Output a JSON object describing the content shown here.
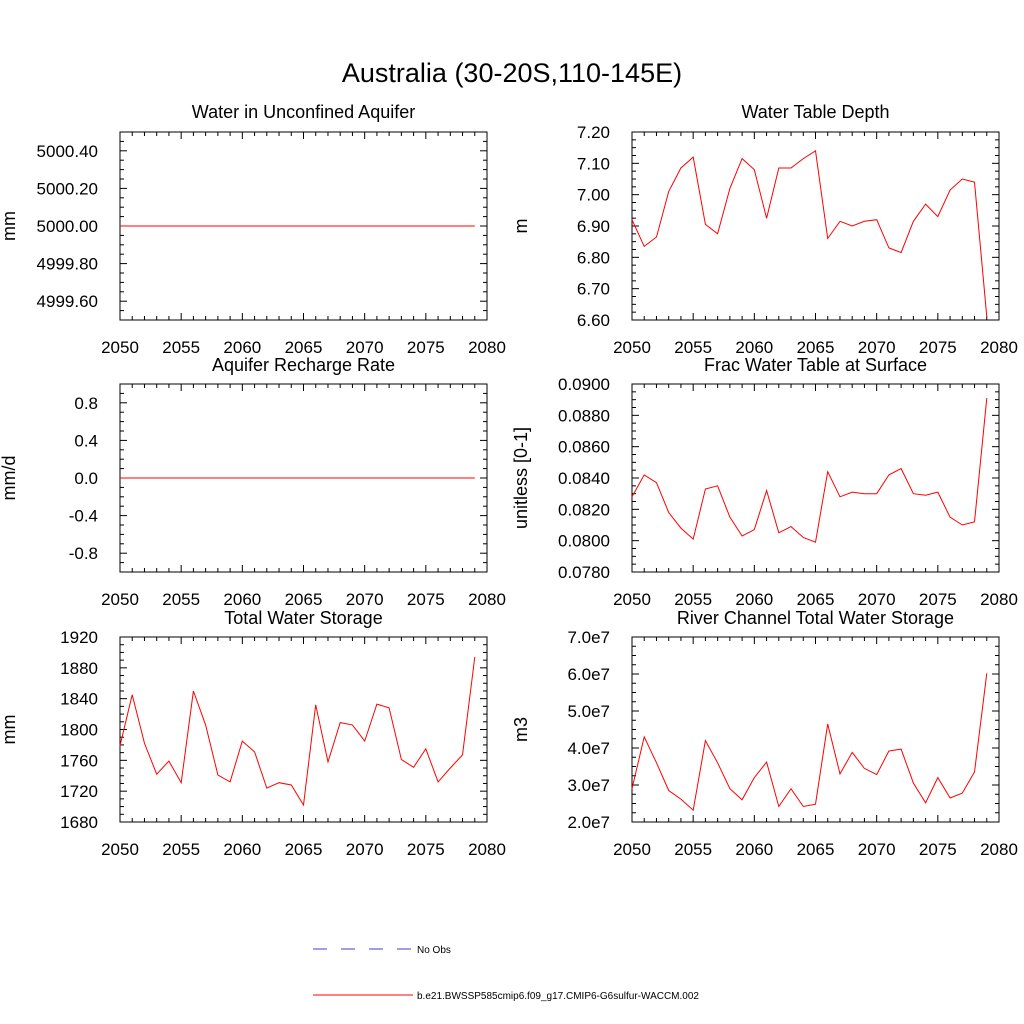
{
  "title": "Australia (30-20S,110-145E)",
  "colors": {
    "model": "#ff0000",
    "obs": "#3c3cc8",
    "axis": "#000000"
  },
  "legend": {
    "obs_label": "No Obs",
    "model_label": "b.e21.BWSSP585cmip6.f09_g17.CMIP6-G6sulfur-WACCM.002"
  },
  "chart_data": [
    {
      "type": "line",
      "title": "Water in Unconfined Aquifer",
      "xlabel": "",
      "ylabel": "mm",
      "xlim": [
        2050,
        2080
      ],
      "ylim": [
        4999.5,
        5000.5
      ],
      "xticks": [
        "2050",
        "2055",
        "2060",
        "2065",
        "2070",
        "2075",
        "2080"
      ],
      "yticks": [
        "4999.60",
        "4999.80",
        "5000.00",
        "5000.20",
        "5000.40"
      ],
      "x": [
        2050,
        2079
      ],
      "series": [
        {
          "values": [
            5000.0,
            5000.0
          ]
        }
      ]
    },
    {
      "type": "line",
      "title": "Water Table Depth",
      "xlabel": "",
      "ylabel": "m",
      "xlim": [
        2050,
        2080
      ],
      "ylim": [
        6.6,
        7.2
      ],
      "xticks": [
        "2050",
        "2055",
        "2060",
        "2065",
        "2070",
        "2075",
        "2080"
      ],
      "yticks": [
        "6.60",
        "6.70",
        "6.80",
        "6.90",
        "7.00",
        "7.10",
        "7.20"
      ],
      "x": [
        2050,
        2051,
        2052,
        2053,
        2054,
        2055,
        2056,
        2057,
        2058,
        2059,
        2060,
        2061,
        2062,
        2063,
        2064,
        2065,
        2066,
        2067,
        2068,
        2069,
        2070,
        2071,
        2072,
        2073,
        2074,
        2075,
        2076,
        2077,
        2078,
        2079
      ],
      "series": [
        {
          "values": [
            6.92,
            6.835,
            6.865,
            7.01,
            7.085,
            7.12,
            6.905,
            6.875,
            7.02,
            7.115,
            7.08,
            6.925,
            7.085,
            7.085,
            7.115,
            7.14,
            6.86,
            6.915,
            6.9,
            6.915,
            6.92,
            6.83,
            6.815,
            6.915,
            6.97,
            6.93,
            7.015,
            7.05,
            7.04,
            6.61
          ]
        }
      ]
    },
    {
      "type": "line",
      "title": "Aquifer Recharge Rate",
      "xlabel": "",
      "ylabel": "mm/d",
      "xlim": [
        2050,
        2080
      ],
      "ylim": [
        -1.0,
        1.0
      ],
      "xticks": [
        "2050",
        "2055",
        "2060",
        "2065",
        "2070",
        "2075",
        "2080"
      ],
      "yticks": [
        "-0.8",
        "-0.4",
        "0.0",
        "0.4",
        "0.8"
      ],
      "x": [
        2050,
        2079
      ],
      "series": [
        {
          "values": [
            0.0,
            0.0
          ]
        }
      ]
    },
    {
      "type": "line",
      "title": "Frac Water Table at Surface",
      "xlabel": "",
      "ylabel": "unitless [0-1]",
      "xlim": [
        2050,
        2080
      ],
      "ylim": [
        0.078,
        0.09
      ],
      "xticks": [
        "2050",
        "2055",
        "2060",
        "2065",
        "2070",
        "2075",
        "2080"
      ],
      "yticks": [
        "0.0780",
        "0.0800",
        "0.0820",
        "0.0840",
        "0.0860",
        "0.0880",
        "0.0900"
      ],
      "x": [
        2050,
        2051,
        2052,
        2053,
        2054,
        2055,
        2056,
        2057,
        2058,
        2059,
        2060,
        2061,
        2062,
        2063,
        2064,
        2065,
        2066,
        2067,
        2068,
        2069,
        2070,
        2071,
        2072,
        2073,
        2074,
        2075,
        2076,
        2077,
        2078,
        2079
      ],
      "series": [
        {
          "values": [
            0.0828,
            0.0842,
            0.0837,
            0.0818,
            0.0808,
            0.0801,
            0.0833,
            0.0835,
            0.0815,
            0.0803,
            0.0807,
            0.0832,
            0.0805,
            0.0809,
            0.0802,
            0.0799,
            0.0844,
            0.0828,
            0.0831,
            0.083,
            0.083,
            0.0842,
            0.0846,
            0.083,
            0.0829,
            0.0831,
            0.0815,
            0.081,
            0.0812,
            0.0891
          ]
        }
      ]
    },
    {
      "type": "line",
      "title": "Total Water Storage",
      "xlabel": "",
      "ylabel": "mm",
      "xlim": [
        2050,
        2080
      ],
      "ylim": [
        1680,
        1920
      ],
      "xticks": [
        "2050",
        "2055",
        "2060",
        "2065",
        "2070",
        "2075",
        "2080"
      ],
      "yticks": [
        "1680",
        "1720",
        "1760",
        "1800",
        "1840",
        "1880",
        "1920"
      ],
      "x": [
        2050,
        2051,
        2052,
        2053,
        2054,
        2055,
        2056,
        2057,
        2058,
        2059,
        2060,
        2061,
        2062,
        2063,
        2064,
        2065,
        2066,
        2067,
        2068,
        2069,
        2070,
        2071,
        2072,
        2073,
        2074,
        2075,
        2076,
        2077,
        2078,
        2079
      ],
      "series": [
        {
          "values": [
            1779,
            1845,
            1782,
            1742,
            1759,
            1731,
            1850,
            1806,
            1741,
            1732,
            1785,
            1771,
            1724,
            1731,
            1728,
            1702,
            1832,
            1758,
            1809,
            1806,
            1785,
            1833,
            1828,
            1761,
            1751,
            1775,
            1732,
            1750,
            1767,
            1894
          ]
        }
      ]
    },
    {
      "type": "line",
      "title": "River Channel Total Water Storage",
      "xlabel": "",
      "ylabel": "m3",
      "xlim": [
        2050,
        2080
      ],
      "ylim": [
        20000000.0,
        70000000.0
      ],
      "xticks": [
        "2050",
        "2055",
        "2060",
        "2065",
        "2070",
        "2075",
        "2080"
      ],
      "yticks": [
        "2.0e7",
        "3.0e7",
        "4.0e7",
        "5.0e7",
        "6.0e7",
        "7.0e7"
      ],
      "x": [
        2050,
        2051,
        2052,
        2053,
        2054,
        2055,
        2056,
        2057,
        2058,
        2059,
        2060,
        2061,
        2062,
        2063,
        2064,
        2065,
        2066,
        2067,
        2068,
        2069,
        2070,
        2071,
        2072,
        2073,
        2074,
        2075,
        2076,
        2077,
        2078,
        2079
      ],
      "series": [
        {
          "values": [
            29000000.0,
            43000000.0,
            36000000.0,
            28500000.0,
            26200000.0,
            23200000.0,
            42000000.0,
            36000000.0,
            29000000.0,
            26000000.0,
            32000000.0,
            36200000.0,
            24200000.0,
            29000000.0,
            24200000.0,
            24800000.0,
            46500000.0,
            33000000.0,
            38800000.0,
            34500000.0,
            32800000.0,
            39200000.0,
            39700000.0,
            30500000.0,
            25200000.0,
            32000000.0,
            26500000.0,
            27800000.0,
            33500000.0,
            60200000.0
          ]
        }
      ]
    }
  ]
}
